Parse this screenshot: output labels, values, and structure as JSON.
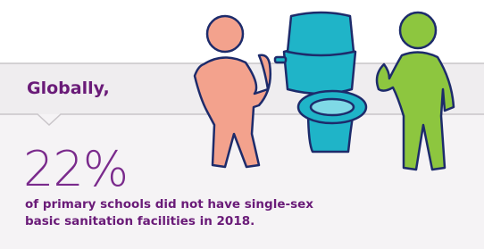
{
  "header": {
    "title": "Globally,"
  },
  "statistic": {
    "value": "22%",
    "description": "of primary schools did not have single-sex basic sanitation facilities in 2018."
  }
}
